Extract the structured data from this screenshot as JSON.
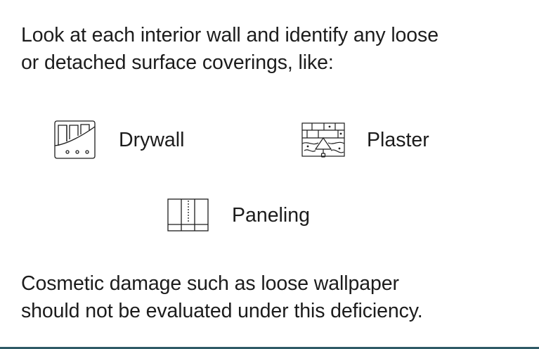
{
  "instructions": {
    "intro_lines": [
      "Look at each interior wall and identify any loose",
      "or detached surface coverings, like:"
    ],
    "note_lines": [
      "Cosmetic damage such as loose wallpaper",
      "should not be evaluated under this deficiency."
    ]
  },
  "coverings": [
    {
      "label": "Drywall",
      "icon": "drywall-icon"
    },
    {
      "label": "Plaster",
      "icon": "plaster-icon"
    },
    {
      "label": "Paneling",
      "icon": "paneling-icon"
    }
  ],
  "colors": {
    "text": "#1c1c1c",
    "background": "#ffffff",
    "bottom_edge": "#2e5a66"
  }
}
